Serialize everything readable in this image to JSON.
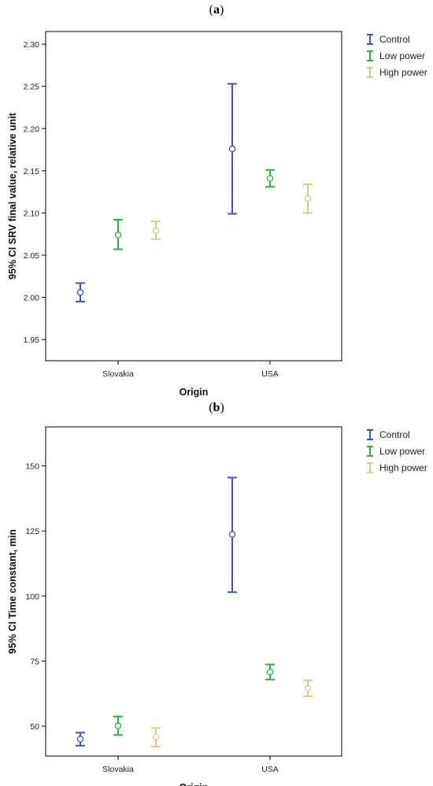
{
  "panels": [
    {
      "paren_open": "(",
      "letter": "a",
      "paren_close": ")"
    },
    {
      "paren_open": "(",
      "letter": "b",
      "paren_close": ")"
    }
  ],
  "colors": {
    "Control": "#3a55c2",
    "Low power": "#2fb043",
    "High power": "#d4c98a"
  },
  "chart_data": [
    {
      "type": "errorbar",
      "title": "(a)",
      "xlabel": "Origin",
      "ylabel": "95% CI SRV final value, relative unit",
      "categories": [
        "Slovakia",
        "USA"
      ],
      "ylim": [
        1.925,
        2.315
      ],
      "yticks": [
        1.95,
        2.0,
        2.05,
        2.1,
        2.15,
        2.2,
        2.25,
        2.3
      ],
      "ytick_labels": [
        "1.95",
        "2.00",
        "2.05",
        "2.10",
        "2.15",
        "2.20",
        "2.25",
        "2.30"
      ],
      "legend_position": "top-right",
      "series": [
        {
          "name": "Control",
          "mean": [
            2.006,
            2.176
          ],
          "lower": [
            1.995,
            2.099
          ],
          "upper": [
            2.017,
            2.253
          ]
        },
        {
          "name": "Low power",
          "mean": [
            2.074,
            2.141
          ],
          "lower": [
            2.057,
            2.131
          ],
          "upper": [
            2.092,
            2.151
          ]
        },
        {
          "name": "High power",
          "mean": [
            2.079,
            2.117
          ],
          "lower": [
            2.069,
            2.1
          ],
          "upper": [
            2.09,
            2.134
          ]
        }
      ]
    },
    {
      "type": "errorbar",
      "title": "(b)",
      "xlabel": "Origin",
      "ylabel": "95% CI Time constant, min",
      "categories": [
        "Slovakia",
        "USA"
      ],
      "ylim": [
        38.5,
        165
      ],
      "yticks": [
        50,
        75,
        100,
        125,
        150
      ],
      "ytick_labels": [
        "50",
        "75",
        "100",
        "125",
        "150"
      ],
      "legend_position": "top-right",
      "series": [
        {
          "name": "Control",
          "mean": [
            45.0,
            123.7
          ],
          "lower": [
            42.5,
            101.5
          ],
          "upper": [
            47.5,
            145.5
          ]
        },
        {
          "name": "Low power",
          "mean": [
            50.1,
            70.8
          ],
          "lower": [
            46.6,
            67.9
          ],
          "upper": [
            53.7,
            73.7
          ]
        },
        {
          "name": "High power",
          "mean": [
            45.8,
            64.5
          ],
          "lower": [
            42.2,
            61.5
          ],
          "upper": [
            49.3,
            67.6
          ]
        }
      ]
    }
  ]
}
